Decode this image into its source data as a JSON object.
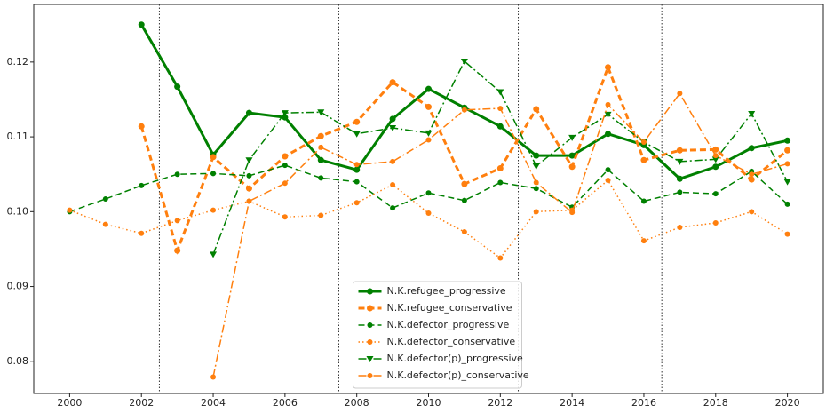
{
  "chart_data": {
    "type": "line",
    "x": [
      2000,
      2001,
      2002,
      2003,
      2004,
      2005,
      2006,
      2007,
      2008,
      2009,
      2010,
      2011,
      2012,
      2013,
      2014,
      2015,
      2016,
      2017,
      2018,
      2019,
      2020
    ],
    "xlim": [
      1999,
      2021
    ],
    "xticks": [
      2000,
      2002,
      2004,
      2006,
      2008,
      2010,
      2012,
      2014,
      2016,
      2018,
      2020
    ],
    "ylim": [
      0.0757,
      0.1277
    ],
    "yticks": [
      0.08,
      0.09,
      {
        "value": 0.1,
        "label": "0.10"
      },
      0.11,
      0.12
    ],
    "vlines": [
      2002.5,
      2007.5,
      2012.5,
      2016.5
    ],
    "legend": "lower center",
    "series": [
      {
        "name": "N.K.refugee_progressive",
        "color": "#008000",
        "linestyle": "solid",
        "marker": "circle",
        "linewidth": 3,
        "values": [
          null,
          null,
          0.125,
          0.1167,
          0.1076,
          0.1132,
          0.1126,
          0.1069,
          0.1056,
          0.1124,
          0.1164,
          0.1139,
          0.1114,
          0.1075,
          0.1075,
          0.1104,
          0.1089,
          0.1044,
          0.106,
          0.1085,
          0.1095
        ]
      },
      {
        "name": "N.K.refugee_conservative",
        "color": "#ff7f0e",
        "linestyle": "dashed",
        "marker": "circle",
        "linewidth": 3,
        "values": [
          null,
          null,
          0.1114,
          0.0948,
          0.1073,
          0.1031,
          0.1074,
          0.1101,
          0.112,
          0.1173,
          0.114,
          0.1037,
          0.1058,
          0.1137,
          0.106,
          0.1193,
          0.1069,
          0.1082,
          0.1083,
          0.1043,
          0.1082
        ]
      },
      {
        "name": "N.K.defector_progressive",
        "color": "#008000",
        "linestyle": "dashed",
        "marker": "circle",
        "linewidth": 1.5,
        "values": [
          0.1,
          0.1017,
          0.1035,
          0.105,
          0.1051,
          0.1048,
          0.1062,
          0.1045,
          0.104,
          0.1005,
          0.1025,
          0.1015,
          0.1039,
          0.1031,
          0.1006,
          0.1056,
          0.1014,
          0.1026,
          0.1024,
          0.1054,
          0.101
        ]
      },
      {
        "name": "N.K.defector_conservative",
        "color": "#ff7f0e",
        "linestyle": "dotted",
        "marker": "circle",
        "linewidth": 1.5,
        "values": [
          0.1002,
          0.0983,
          0.0971,
          0.0988,
          0.1002,
          0.1014,
          0.0993,
          0.0995,
          0.1012,
          0.1036,
          0.0998,
          0.0973,
          0.0938,
          0.1,
          0.1002,
          0.1042,
          0.0961,
          0.0979,
          0.0985,
          0.1,
          0.097
        ]
      },
      {
        "name": "N.K.defector(p)_progressive",
        "color": "#008000",
        "linestyle": "dashdot",
        "marker": "triangle",
        "linewidth": 1.5,
        "values": [
          null,
          null,
          null,
          null,
          0.0943,
          0.1069,
          0.1132,
          0.1133,
          0.1104,
          0.1112,
          0.1105,
          0.1201,
          0.116,
          0.1061,
          0.1099,
          0.113,
          0.1093,
          0.1067,
          0.107,
          0.1131,
          0.104
        ]
      },
      {
        "name": "N.K.defector(p)_conservative",
        "color": "#ff7f0e",
        "linestyle": "dashdot",
        "marker": "circle",
        "linewidth": 1.5,
        "values": [
          null,
          null,
          null,
          null,
          0.0779,
          0.1014,
          0.1038,
          0.1086,
          0.1063,
          0.1067,
          0.1096,
          0.1136,
          0.1138,
          0.1039,
          0.0999,
          0.1143,
          0.1093,
          0.1158,
          0.1075,
          0.105,
          0.1064
        ]
      }
    ]
  }
}
